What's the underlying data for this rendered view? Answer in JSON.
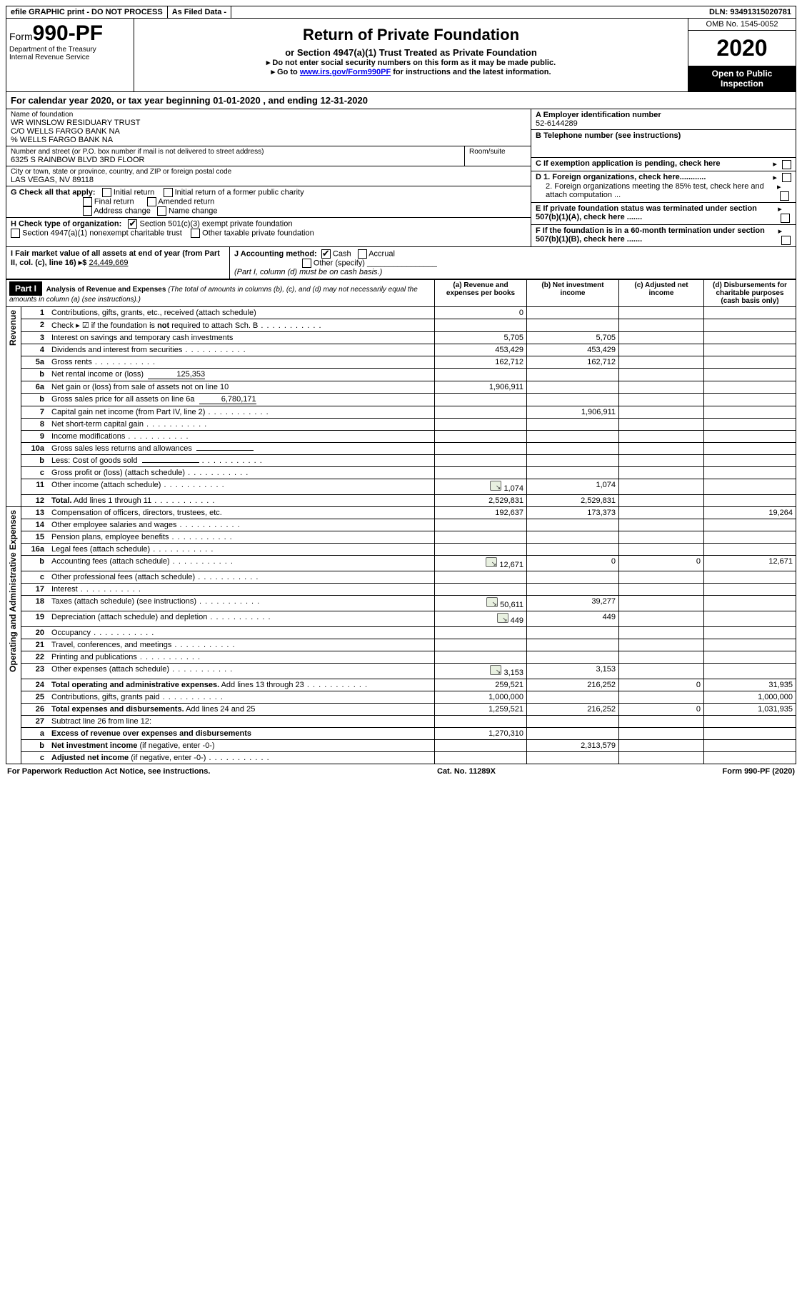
{
  "topbar": {
    "efile": "efile GRAPHIC print - DO NOT PROCESS",
    "asfiled": "As Filed Data -",
    "dln": "DLN: 93491315020781"
  },
  "header": {
    "form_prefix": "Form",
    "form_number": "990-PF",
    "dept": "Department of the Treasury",
    "irs": "Internal Revenue Service",
    "title": "Return of Private Foundation",
    "subtitle": "or Section 4947(a)(1) Trust Treated as Private Foundation",
    "warn1": "▸ Do not enter social security numbers on this form as it may be made public.",
    "warn2_pre": "▸ Go to ",
    "warn2_link": "www.irs.gov/Form990PF",
    "warn2_post": " for instructions and the latest information.",
    "omb": "OMB No. 1545-0052",
    "year": "2020",
    "inspect": "Open to Public Inspection"
  },
  "calyear": "For calendar year 2020, or tax year beginning 01-01-2020            , and ending 12-31-2020",
  "entity": {
    "name_label": "Name of foundation",
    "name1": "WR WINSLOW RESIDUARY TRUST",
    "name2": "C/O WELLS FARGO BANK NA",
    "name3": "% WELLS FARGO BANK NA",
    "addr_label": "Number and street (or P.O. box number if mail is not delivered to street address)",
    "addr": "6325 S RAINBOW BLVD 3RD FLOOR",
    "room_label": "Room/suite",
    "city_label": "City or town, state or province, country, and ZIP or foreign postal code",
    "city": "LAS VEGAS, NV  89118"
  },
  "rightcol": {
    "a_label": "A Employer identification number",
    "a_val": "52-6144289",
    "b_label": "B Telephone number (see instructions)",
    "c_label": "C If exemption application is pending, check here",
    "d1": "D 1. Foreign organizations, check here............",
    "d2": "2. Foreign organizations meeting the 85% test, check here and attach computation ...",
    "e": "E  If private foundation status was terminated under section 507(b)(1)(A), check here .......",
    "f": "F  If the foundation is in a 60-month termination under section 507(b)(1)(B), check here .......",
    "arrow": "▸"
  },
  "g": {
    "label": "G Check all that apply:",
    "opts": [
      "Initial return",
      "Initial return of a former public charity",
      "Final return",
      "Amended return",
      "Address change",
      "Name change"
    ]
  },
  "h": {
    "label": "H Check type of organization:",
    "o1": "Section 501(c)(3) exempt private foundation",
    "o2": "Section 4947(a)(1) nonexempt charitable trust",
    "o3": "Other taxable private foundation"
  },
  "i": {
    "label": "I Fair market value of all assets at end of year (from Part II, col. (c), line 16) ▸$ ",
    "val": "24,449,669"
  },
  "j": {
    "label": "J Accounting method:",
    "cash": "Cash",
    "accrual": "Accrual",
    "other": "Other (specify)",
    "note": "(Part I, column (d) must be on cash basis.)"
  },
  "part1": {
    "label": "Part I",
    "title": "Analysis of Revenue and Expenses",
    "sub": "(The total of amounts in columns (b), (c), and (d) may not necessarily equal the amounts in column (a) (see instructions).)",
    "col_a": "(a)   Revenue and expenses per books",
    "col_b": "(b)   Net investment income",
    "col_c": "(c)   Adjusted net income",
    "col_d": "(d)   Disbursements for charitable purposes (cash basis only)",
    "vert_rev": "Revenue",
    "vert_exp": "Operating and Administrative Expenses"
  },
  "rows": [
    {
      "n": "1",
      "d": "Contributions, gifts, grants, etc., received (attach schedule)",
      "a": "0"
    },
    {
      "n": "2",
      "d": "Check ▸ ☑ if the foundation is <b>not</b> required to attach Sch. B",
      "a": "",
      "dots": true
    },
    {
      "n": "3",
      "d": "Interest on savings and temporary cash investments",
      "a": "5,705",
      "b": "5,705"
    },
    {
      "n": "4",
      "d": "Dividends and interest from securities",
      "a": "453,429",
      "b": "453,429",
      "dots": true
    },
    {
      "n": "5a",
      "d": "Gross rents",
      "a": "162,712",
      "b": "162,712",
      "dots": true
    },
    {
      "n": "b",
      "d": "Net rental income or (loss)",
      "inline": "125,353"
    },
    {
      "n": "6a",
      "d": "Net gain or (loss) from sale of assets not on line 10",
      "a": "1,906,911"
    },
    {
      "n": "b",
      "d": "Gross sales price for all assets on line 6a",
      "inline": "6,780,171"
    },
    {
      "n": "7",
      "d": "Capital gain net income (from Part IV, line 2)",
      "b": "1,906,911",
      "dots": true
    },
    {
      "n": "8",
      "d": "Net short-term capital gain",
      "dots": true
    },
    {
      "n": "9",
      "d": "Income modifications",
      "dots": true
    },
    {
      "n": "10a",
      "d": "Gross sales less returns and allowances",
      "inline": ""
    },
    {
      "n": "b",
      "d": "Less: Cost of goods sold",
      "dots": true,
      "inline": ""
    },
    {
      "n": "c",
      "d": "Gross profit or (loss) (attach schedule)",
      "dots": true
    },
    {
      "n": "11",
      "d": "Other income (attach schedule)",
      "a": "1,074",
      "b": "1,074",
      "dots": true,
      "sched": true
    },
    {
      "n": "12",
      "d": "<b>Total.</b> Add lines 1 through 11",
      "a": "2,529,831",
      "b": "2,529,831",
      "dots": true
    }
  ],
  "exp_rows": [
    {
      "n": "13",
      "d": "Compensation of officers, directors, trustees, etc.",
      "a": "192,637",
      "b": "173,373",
      "dd": "19,264"
    },
    {
      "n": "14",
      "d": "Other employee salaries and wages",
      "dots": true
    },
    {
      "n": "15",
      "d": "Pension plans, employee benefits",
      "dots": true
    },
    {
      "n": "16a",
      "d": "Legal fees (attach schedule)",
      "dots": true
    },
    {
      "n": "b",
      "d": "Accounting fees (attach schedule)",
      "a": "12,671",
      "b": "0",
      "c": "0",
      "dd": "12,671",
      "dots": true,
      "sched": true
    },
    {
      "n": "c",
      "d": "Other professional fees (attach schedule)",
      "dots": true
    },
    {
      "n": "17",
      "d": "Interest",
      "dots": true
    },
    {
      "n": "18",
      "d": "Taxes (attach schedule) (see instructions)",
      "a": "50,611",
      "b": "39,277",
      "dots": true,
      "sched": true
    },
    {
      "n": "19",
      "d": "Depreciation (attach schedule) and depletion",
      "a": "449",
      "b": "449",
      "dots": true,
      "sched": true
    },
    {
      "n": "20",
      "d": "Occupancy",
      "dots": true
    },
    {
      "n": "21",
      "d": "Travel, conferences, and meetings",
      "dots": true
    },
    {
      "n": "22",
      "d": "Printing and publications",
      "dots": true
    },
    {
      "n": "23",
      "d": "Other expenses (attach schedule)",
      "a": "3,153",
      "b": "3,153",
      "dots": true,
      "sched": true
    },
    {
      "n": "24",
      "d": "<b>Total operating and administrative expenses.</b> Add lines 13 through 23",
      "a": "259,521",
      "b": "216,252",
      "c": "0",
      "dd": "31,935",
      "dots": true
    },
    {
      "n": "25",
      "d": "Contributions, gifts, grants paid",
      "a": "1,000,000",
      "dd": "1,000,000",
      "dots": true
    },
    {
      "n": "26",
      "d": "<b>Total expenses and disbursements.</b> Add lines 24 and 25",
      "a": "1,259,521",
      "b": "216,252",
      "c": "0",
      "dd": "1,031,935"
    },
    {
      "n": "27",
      "d": "Subtract line 26 from line 12:"
    },
    {
      "n": "a",
      "d": "<b>Excess of revenue over expenses and disbursements</b>",
      "a": "1,270,310"
    },
    {
      "n": "b",
      "d": "<b>Net investment income</b> (if negative, enter -0-)",
      "b": "2,313,579"
    },
    {
      "n": "c",
      "d": "<b>Adjusted net income</b> (if negative, enter -0-)",
      "dots": true
    }
  ],
  "footer": {
    "left": "For Paperwork Reduction Act Notice, see instructions.",
    "mid": "Cat. No. 11289X",
    "right": "Form 990-PF (2020)"
  }
}
